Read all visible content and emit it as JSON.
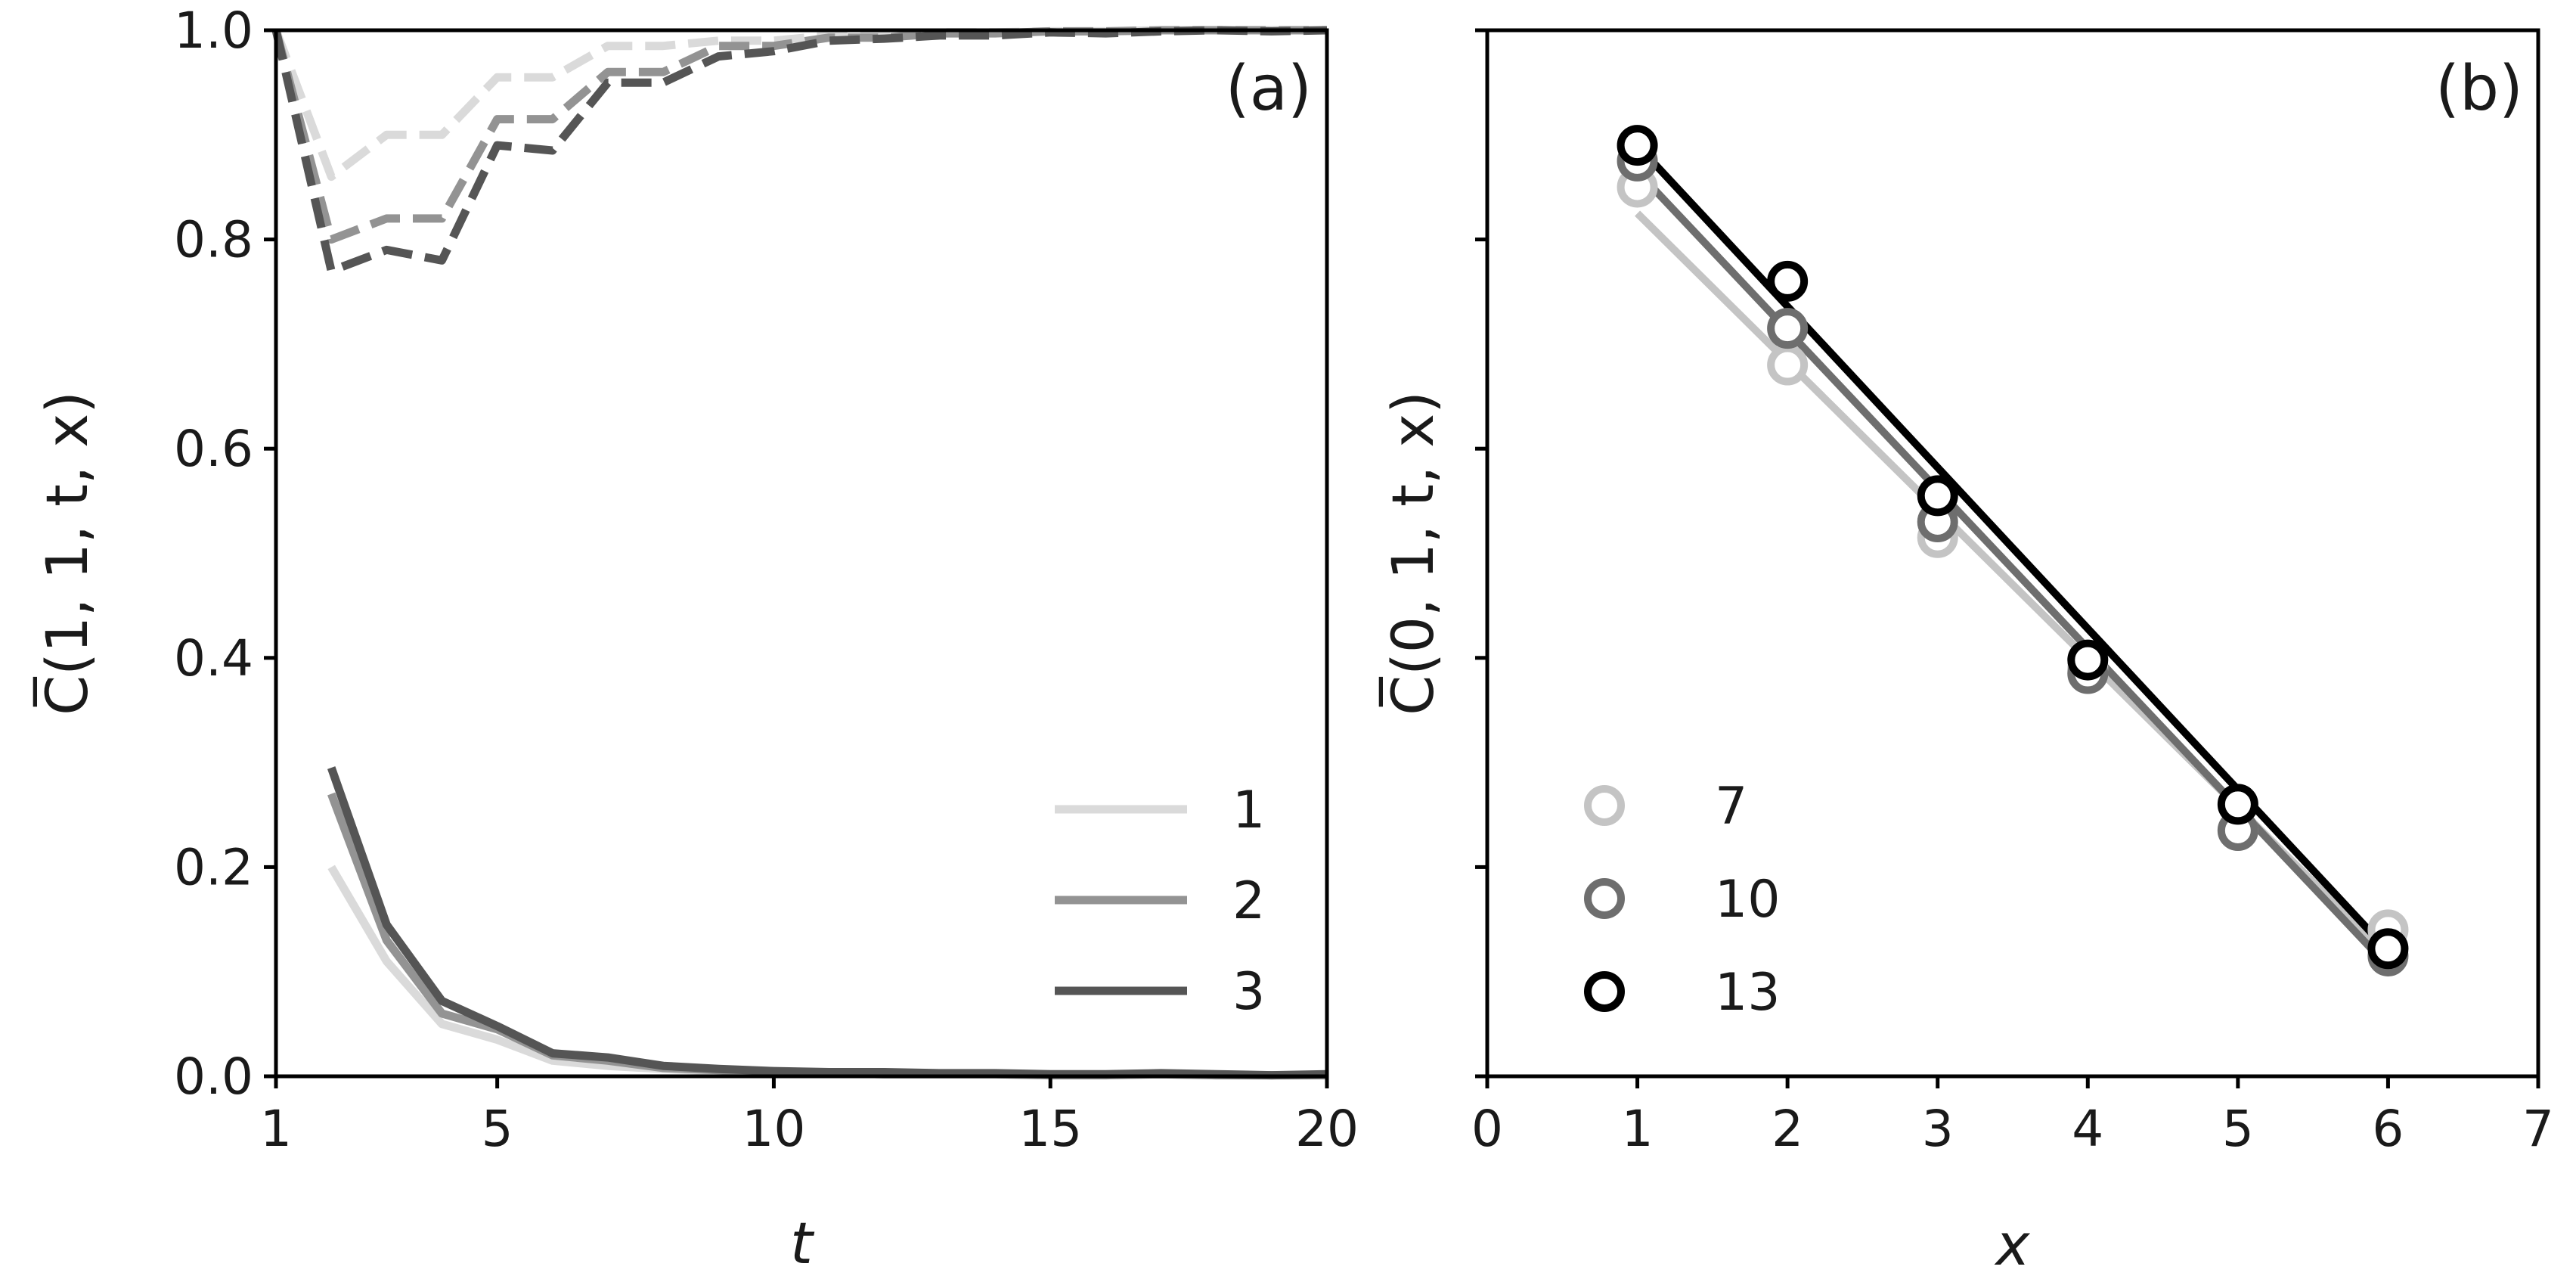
{
  "chart_data": [
    {
      "panel": "(a)",
      "type": "line",
      "xlabel": "t",
      "ylabel": "C̅(1, 1, t, x)",
      "xlim": [
        1,
        20
      ],
      "ylim": [
        0.0,
        1.0
      ],
      "xticks": [
        1,
        5,
        10,
        15,
        20
      ],
      "yticks": [
        0.0,
        0.2,
        0.4,
        0.6,
        0.8,
        1.0
      ],
      "xtick_labels": [
        "1",
        "5",
        "10",
        "15",
        "20"
      ],
      "ytick_labels": [
        "0.0",
        "0.2",
        "0.4",
        "0.6",
        "0.8",
        "1.0"
      ],
      "legend_position": "lower-right",
      "grid": false,
      "series": [
        {
          "name": "1",
          "style": "solid",
          "color": "#dadada",
          "x": [
            2,
            3,
            4,
            5,
            6,
            7,
            8,
            9,
            10,
            11,
            12,
            13,
            14,
            15,
            16,
            17,
            18,
            19,
            20
          ],
          "y": [
            0.2,
            0.11,
            0.05,
            0.035,
            0.015,
            0.01,
            0.007,
            0.005,
            0.004,
            0.003,
            0.002,
            0.002,
            0.002,
            0.001,
            0.001,
            0.002,
            0.001,
            0.001,
            0.001
          ]
        },
        {
          "name": "2",
          "style": "solid",
          "color": "#939393",
          "x": [
            2,
            3,
            4,
            5,
            6,
            7,
            8,
            9,
            10,
            11,
            12,
            13,
            14,
            15,
            16,
            17,
            18,
            19,
            20
          ],
          "y": [
            0.27,
            0.13,
            0.06,
            0.045,
            0.02,
            0.015,
            0.008,
            0.006,
            0.004,
            0.003,
            0.002,
            0.002,
            0.002,
            0.001,
            0.001,
            0.002,
            0.001,
            0.001,
            0.001
          ]
        },
        {
          "name": "3",
          "style": "solid",
          "color": "#555555",
          "x": [
            2,
            3,
            4,
            5,
            6,
            7,
            8,
            9,
            10,
            11,
            12,
            13,
            14,
            15,
            16,
            17,
            18,
            19,
            20
          ],
          "y": [
            0.295,
            0.145,
            0.072,
            0.048,
            0.022,
            0.018,
            0.01,
            0.007,
            0.005,
            0.004,
            0.004,
            0.003,
            0.003,
            0.002,
            0.002,
            0.003,
            0.002,
            0.001,
            0.002
          ]
        },
        {
          "name": "",
          "style": "dashed",
          "color": "#dadada",
          "x": [
            1,
            2,
            3,
            4,
            5,
            6,
            7,
            8,
            9,
            10,
            11,
            12,
            13,
            14,
            15,
            16,
            17,
            18,
            19,
            20
          ],
          "y": [
            1.0,
            0.86,
            0.9,
            0.9,
            0.955,
            0.955,
            0.985,
            0.985,
            0.99,
            0.99,
            0.995,
            0.995,
            0.998,
            0.998,
            0.999,
            0.999,
            1.0,
            1.0,
            1.0,
            1.0
          ]
        },
        {
          "name": "",
          "style": "dashed",
          "color": "#939393",
          "x": [
            1,
            2,
            3,
            4,
            5,
            6,
            7,
            8,
            9,
            10,
            11,
            12,
            13,
            14,
            15,
            16,
            17,
            18,
            19,
            20
          ],
          "y": [
            1.0,
            0.8,
            0.82,
            0.82,
            0.915,
            0.915,
            0.96,
            0.96,
            0.985,
            0.985,
            0.993,
            0.993,
            0.997,
            0.997,
            0.999,
            0.999,
            1.0,
            1.0,
            1.0,
            1.0
          ]
        },
        {
          "name": "",
          "style": "dashed",
          "color": "#555555",
          "x": [
            1,
            2,
            3,
            4,
            5,
            6,
            7,
            8,
            9,
            10,
            11,
            12,
            13,
            14,
            15,
            16,
            17,
            18,
            19,
            20
          ],
          "y": [
            1.0,
            0.77,
            0.79,
            0.78,
            0.89,
            0.885,
            0.95,
            0.95,
            0.975,
            0.98,
            0.99,
            0.992,
            0.995,
            0.995,
            0.998,
            0.997,
            0.999,
            1.0,
            0.999,
            1.0
          ]
        }
      ]
    },
    {
      "panel": "(b)",
      "type": "scatter",
      "xlabel": "x",
      "ylabel": "C̅(0, 1, t, x)",
      "xlim": [
        0,
        7
      ],
      "ylim": [
        0.0,
        1.0
      ],
      "xticks": [
        0,
        1,
        2,
        3,
        4,
        5,
        6,
        7
      ],
      "yticks": [
        0.0,
        0.2,
        0.4,
        0.6,
        0.8,
        1.0
      ],
      "xtick_labels": [
        "0",
        "1",
        "2",
        "3",
        "4",
        "5",
        "6",
        "7"
      ],
      "legend_position": "lower-left",
      "grid": false,
      "series": [
        {
          "name": "7",
          "color": "#c4c4c4",
          "x": [
            1,
            2,
            3,
            4,
            5,
            6
          ],
          "y": [
            0.85,
            0.68,
            0.515,
            0.39,
            0.235,
            0.14
          ],
          "fit_line": [
            [
              1,
              0.825
            ],
            [
              6,
              0.115
            ]
          ]
        },
        {
          "name": "10",
          "color": "#6e6e6e",
          "x": [
            1,
            2,
            3,
            4,
            5,
            6
          ],
          "y": [
            0.875,
            0.715,
            0.53,
            0.385,
            0.235,
            0.115
          ],
          "fit_line": [
            [
              1,
              0.865
            ],
            [
              6,
              0.105
            ]
          ]
        },
        {
          "name": "13",
          "color": "#000000",
          "x": [
            1,
            2,
            3,
            4,
            5,
            6
          ],
          "y": [
            0.89,
            0.76,
            0.555,
            0.398,
            0.26,
            0.122
          ],
          "fit_line": [
            [
              1,
              0.89
            ],
            [
              6,
              0.12
            ]
          ]
        }
      ]
    }
  ]
}
